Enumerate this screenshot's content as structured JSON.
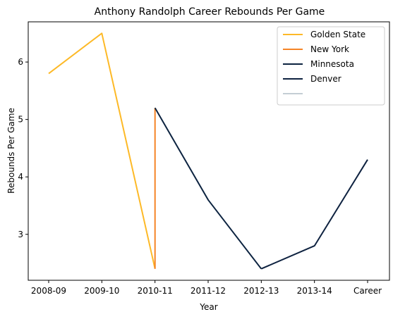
{
  "chart_data": {
    "type": "line",
    "title": "Anthony Randolph Career Rebounds Per Game",
    "xlabel": "Year",
    "ylabel": "Rebounds Per Game",
    "categories": [
      "2008-09",
      "2009-10",
      "2010-11",
      "2011-12",
      "2012-13",
      "2013-14",
      "Career"
    ],
    "ylim": [
      2.2,
      6.7
    ],
    "yticks": [
      3,
      4,
      5,
      6
    ],
    "grid": false,
    "legend_position": "top-right",
    "series": [
      {
        "name": "Golden State",
        "color": "#FDB927",
        "points": [
          [
            0,
            5.8
          ],
          [
            1,
            6.5
          ],
          [
            2,
            2.4
          ]
        ]
      },
      {
        "name": "New York",
        "color": "#F58426",
        "points": [
          [
            2,
            2.4
          ],
          [
            2,
            5.2
          ]
        ]
      },
      {
        "name": "Minnesota",
        "color": "#0C2340",
        "points": [
          [
            2,
            5.2
          ],
          [
            3,
            3.6
          ],
          [
            4,
            2.4
          ]
        ]
      },
      {
        "name": "Denver",
        "color": "#0E2240",
        "points": [
          [
            4,
            2.4
          ],
          [
            5,
            2.8
          ],
          [
            6,
            4.3
          ]
        ]
      },
      {
        "name": "",
        "color": "#C4CED4",
        "points": []
      }
    ]
  }
}
